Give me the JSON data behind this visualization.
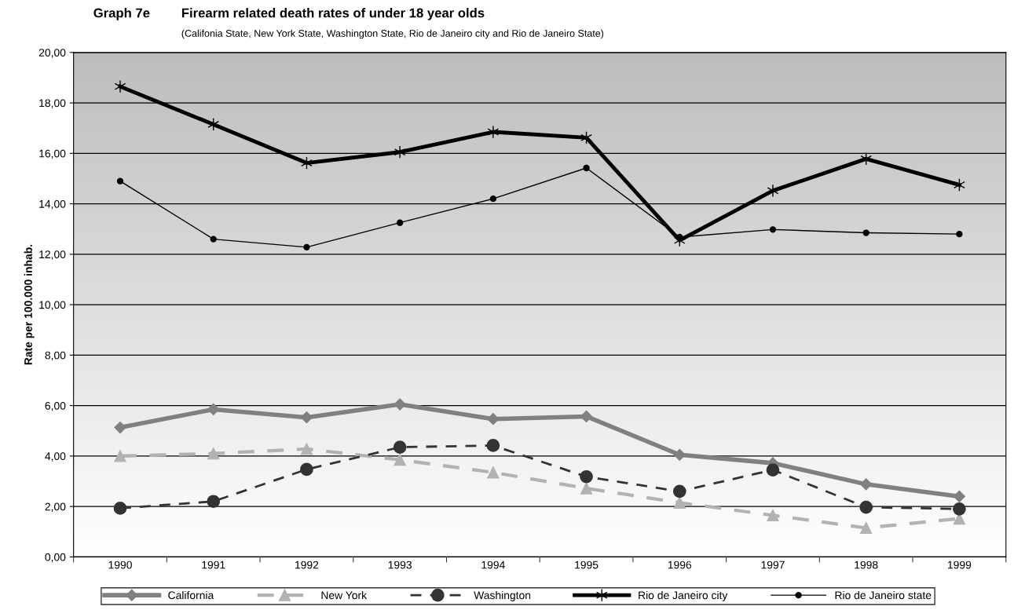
{
  "chart_data": {
    "type": "line",
    "title": "Graph 7e",
    "subtitle": "Firearm related death rates of under 18 year olds",
    "annotations": [
      "(Califonia State, New York State, Washington State, Rio de Janeiro city and Rio de Janeiro State)"
    ],
    "ylabel": "Rate per 100.000 inhab.",
    "categories": [
      "1990",
      "1991",
      "1992",
      "1993",
      "1994",
      "1995",
      "1996",
      "1997",
      "1998",
      "1999"
    ],
    "series": [
      {
        "name": "California",
        "color": "#808080",
        "marker": "diamond",
        "line_style": "solid",
        "values": [
          5.13,
          5.85,
          5.53,
          6.05,
          5.47,
          5.57,
          4.05,
          3.72,
          2.88,
          2.4
        ]
      },
      {
        "name": "New York",
        "color": "#b2b2b2",
        "marker": "triangle",
        "line_style": "dashed",
        "values": [
          4.0,
          4.1,
          4.28,
          3.85,
          3.35,
          2.72,
          2.15,
          1.65,
          1.15,
          1.52
        ]
      },
      {
        "name": "Washington",
        "color": "#333333",
        "marker": "circle",
        "line_style": "dashed",
        "values": [
          1.93,
          2.2,
          3.47,
          4.35,
          4.42,
          3.18,
          2.6,
          3.45,
          1.97,
          1.9
        ]
      },
      {
        "name": "Rio de Janeiro city",
        "color": "#000000",
        "marker": "cross",
        "line_style": "solid",
        "values": [
          18.65,
          17.15,
          15.62,
          16.05,
          16.85,
          16.62,
          12.55,
          14.52,
          15.78,
          14.75
        ]
      },
      {
        "name": "Rio de Janeiro state",
        "color": "#000000",
        "marker": "circle",
        "line_style": "solid",
        "values": [
          14.9,
          12.6,
          12.28,
          13.25,
          14.2,
          15.42,
          12.68,
          12.98,
          12.85,
          12.8
        ]
      }
    ],
    "ylim": [
      0,
      20
    ],
    "yticks": [
      {
        "value": 0,
        "label": "0,00"
      },
      {
        "value": 2,
        "label": "2,00"
      },
      {
        "value": 4,
        "label": "4,00"
      },
      {
        "value": 6,
        "label": "6,00"
      },
      {
        "value": 8,
        "label": "8,00"
      },
      {
        "value": 10,
        "label": "10,00"
      },
      {
        "value": 12,
        "label": "12,00"
      },
      {
        "value": 14,
        "label": "14,00"
      },
      {
        "value": 16,
        "label": "16,00"
      },
      {
        "value": 18,
        "label": "18,00"
      },
      {
        "value": 20,
        "label": "20,00"
      }
    ],
    "grid": "y",
    "legend": "bottom"
  }
}
